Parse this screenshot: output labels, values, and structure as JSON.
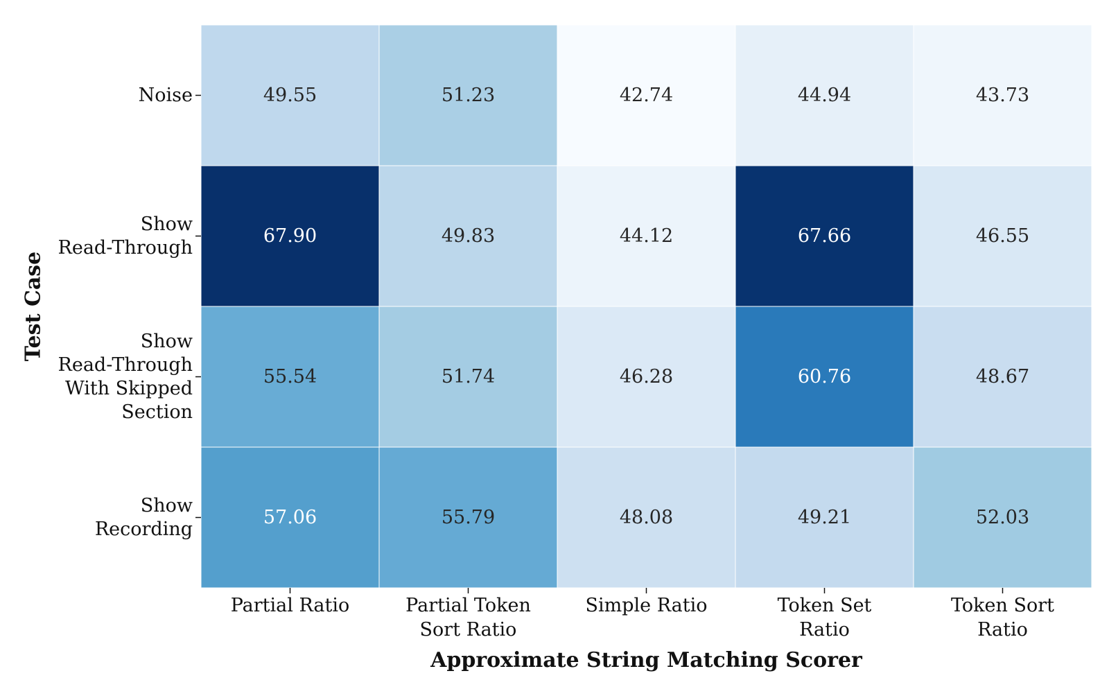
{
  "chart_data": {
    "type": "heatmap",
    "title": "",
    "xlabel": "Approximate String Matching Scorer",
    "ylabel": "Test Case",
    "x_categories": [
      [
        "Partial Ratio"
      ],
      [
        "Partial Token",
        "Sort Ratio"
      ],
      [
        "Simple Ratio"
      ],
      [
        "Token Set",
        "Ratio"
      ],
      [
        "Token Sort",
        "Ratio"
      ]
    ],
    "y_categories": [
      [
        "Noise"
      ],
      [
        "Show",
        "Read-Through"
      ],
      [
        "Show",
        "Read-Through",
        "With Skipped",
        "Section"
      ],
      [
        "Show",
        "Recording"
      ]
    ],
    "values": [
      [
        49.55,
        51.23,
        42.74,
        44.94,
        43.73
      ],
      [
        67.9,
        49.83,
        44.12,
        67.66,
        46.55
      ],
      [
        55.54,
        51.74,
        46.28,
        60.76,
        48.67
      ],
      [
        57.06,
        55.79,
        48.08,
        49.21,
        52.03
      ]
    ],
    "value_labels": [
      [
        "49.55",
        "51.23",
        "42.74",
        "44.94",
        "43.73"
      ],
      [
        "67.90",
        "49.83",
        "44.12",
        "67.66",
        "46.55"
      ],
      [
        "55.54",
        "51.74",
        "46.28",
        "60.76",
        "48.67"
      ],
      [
        "57.06",
        "55.79",
        "48.08",
        "49.21",
        "52.03"
      ]
    ],
    "colormap": "Blues",
    "color_range": [
      42.74,
      67.9
    ],
    "colorbar": false,
    "grid": false
  }
}
